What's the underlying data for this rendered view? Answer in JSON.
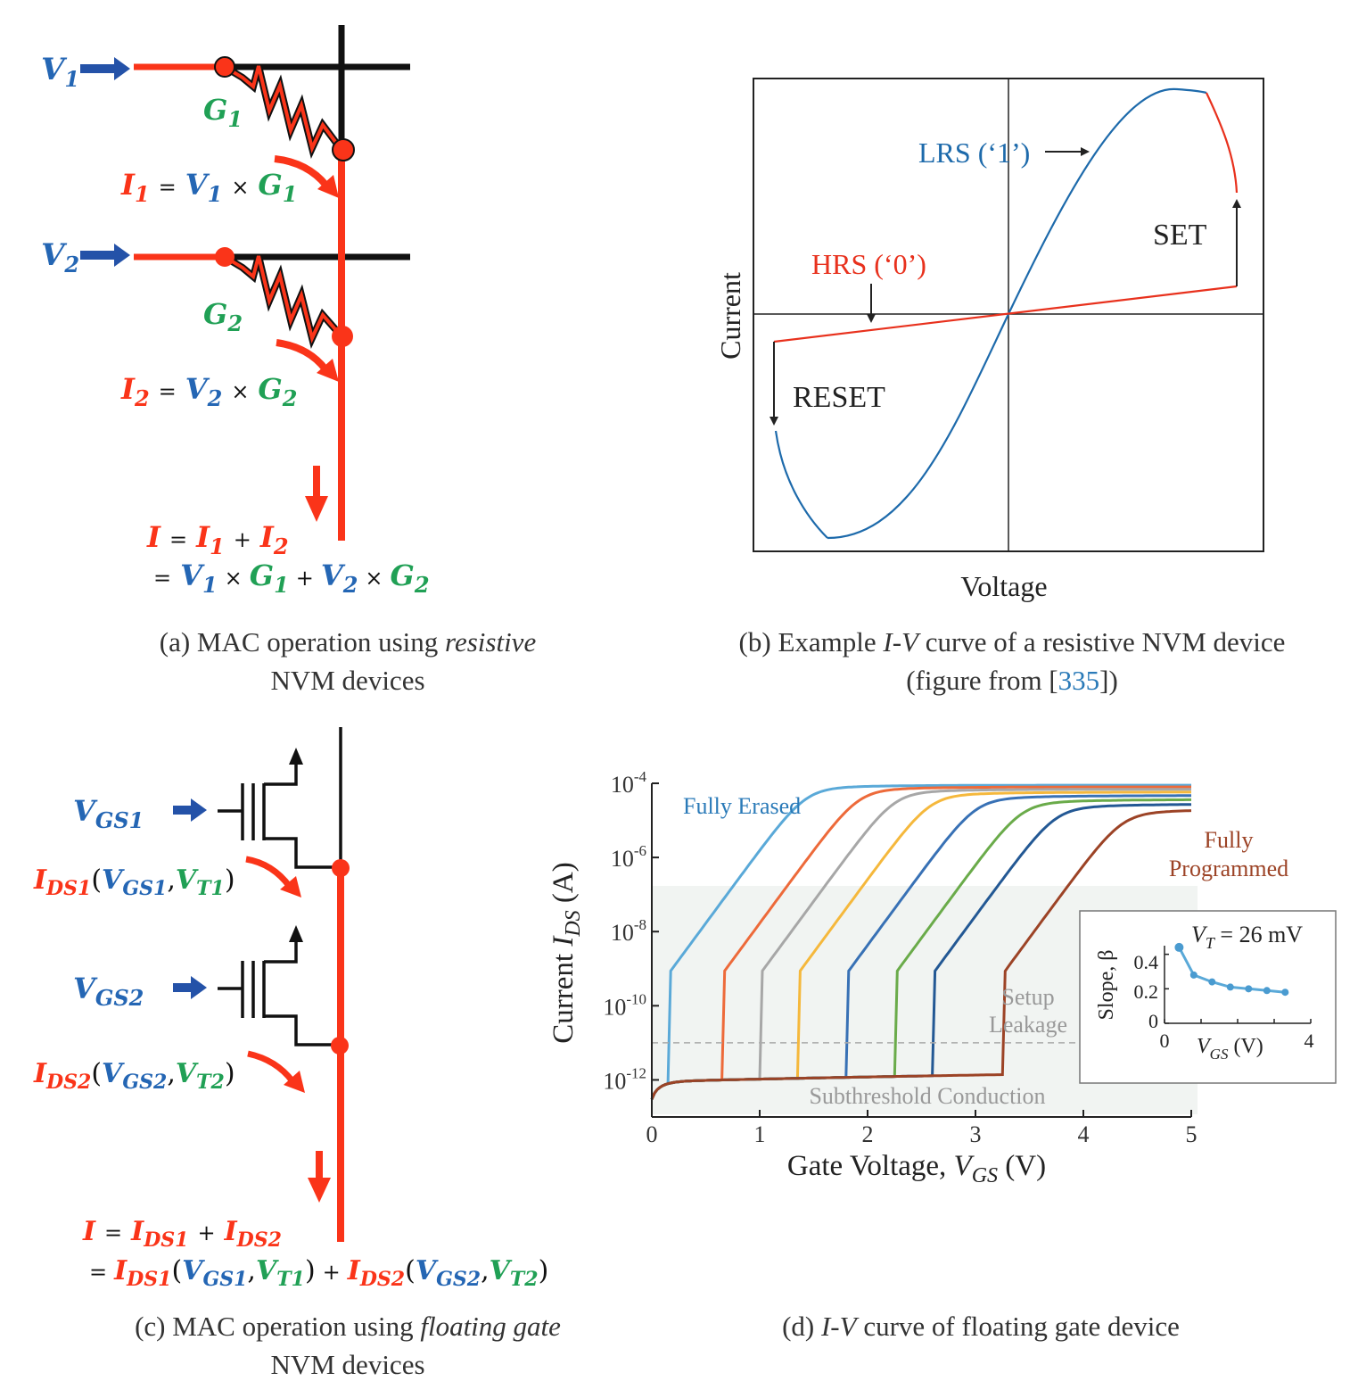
{
  "colors": {
    "red": "#fa3419",
    "blue": "#2466b4",
    "green": "#20a055",
    "black": "#111111",
    "crimson": "#e8311d",
    "curve_blue": "#1d6aab"
  },
  "panel_a": {
    "V1_base": "V",
    "V1_sub": "1",
    "V2_base": "V",
    "V2_sub": "2",
    "G1_base": "G",
    "G1_sub": "1",
    "G2_base": "G",
    "G2_sub": "2",
    "I_base": "I",
    "sub1": "1",
    "sub2": "2",
    "eq_sign": "=",
    "times": "×",
    "plus": "+",
    "caption_line1_pre": "(a) MAC operation using ",
    "caption_line1_em": "resistive",
    "caption_line2": "NVM devices"
  },
  "panel_b": {
    "xlabel": "Voltage",
    "ylabel": "Current",
    "lrs_label": "LRS (‘1’)",
    "hrs_label": "HRS (‘0’)",
    "set_label": "SET",
    "reset_label": "RESET",
    "caption_line1_pre": "(b) Example ",
    "caption_line1_em": "I-V",
    "caption_line1_post": " curve of a resistive NVM device",
    "caption_line2_pre": "(figure from [",
    "caption_ref": "335",
    "caption_line2_post": "])"
  },
  "panel_c": {
    "V_base": "V",
    "I_base": "I",
    "GS1": "GS1",
    "GS2": "GS2",
    "DS1": "DS1",
    "DS2": "DS2",
    "T1": "T1",
    "T2": "T2",
    "open": "(",
    "comma": ",",
    "close": ")",
    "eq_sign": "=",
    "plus": "+",
    "caption_line1_pre": "(c) MAC operation using ",
    "caption_line1_em": "floating gate",
    "caption_line2": "NVM devices"
  },
  "panel_d": {
    "xlabel_pre": "Gate Voltage, ",
    "xlabel_var": "V",
    "xlabel_sub": "GS",
    "xlabel_unit": " (V)",
    "ylabel_pre": "Current ",
    "ylabel_var": "I",
    "ylabel_sub": "DS",
    "ylabel_unit": " (A)",
    "xticks": [
      "0",
      "1",
      "2",
      "3",
      "4",
      "5"
    ],
    "ytick_base": "10",
    "ytick_exps": [
      "-4",
      "-6",
      "-8",
      "-10",
      "-12"
    ],
    "fully_erased": "Fully Erased",
    "fully_programmed_1": "Fully",
    "fully_programmed_2": "Programmed",
    "setup_1": "Setup",
    "setup_2": "Leakage",
    "subthreshold": "Subthreshold Conduction",
    "inset_title_var": "V",
    "inset_title_sub": "T",
    "inset_title_rest": " = 26 mV",
    "inset_ylabel": "Slope, β",
    "inset_yticks": [
      "0.4",
      "0.2",
      "0"
    ],
    "inset_xticks": [
      "0",
      "4"
    ],
    "inset_xlabel_var": "V",
    "inset_xlabel_sub": "GS",
    "inset_xlabel_unit": " (V)",
    "caption_pre": "(d) ",
    "caption_em": "I-V",
    "caption_post": " curve of floating gate device"
  },
  "chart_data": {
    "type": "line",
    "title": "",
    "xlabel": "Gate Voltage, VGS (V)",
    "ylabel": "Current IDS (A)",
    "xlim": [
      0,
      5
    ],
    "y_scale": "log",
    "ylim": [
      1e-13,
      0.0001
    ],
    "curve_colors": [
      "#5aa9d8",
      "#ed6a3a",
      "#a7a7a7",
      "#f5b83c",
      "#3871b5",
      "#6aab4a",
      "#235894",
      "#9c4326"
    ],
    "threshold_voltages": [
      0.2,
      0.7,
      1.05,
      1.4,
      1.85,
      2.3,
      2.65,
      3.3
    ],
    "setup_leakage_level": 1e-11,
    "inset": {
      "type": "line",
      "x": [
        0.4,
        0.8,
        1.3,
        1.8,
        2.3,
        2.8,
        3.3
      ],
      "y": [
        0.44,
        0.28,
        0.24,
        0.21,
        0.2,
        0.19,
        0.18
      ],
      "xlim": [
        0,
        4
      ],
      "ylim": [
        0,
        0.45
      ]
    }
  }
}
